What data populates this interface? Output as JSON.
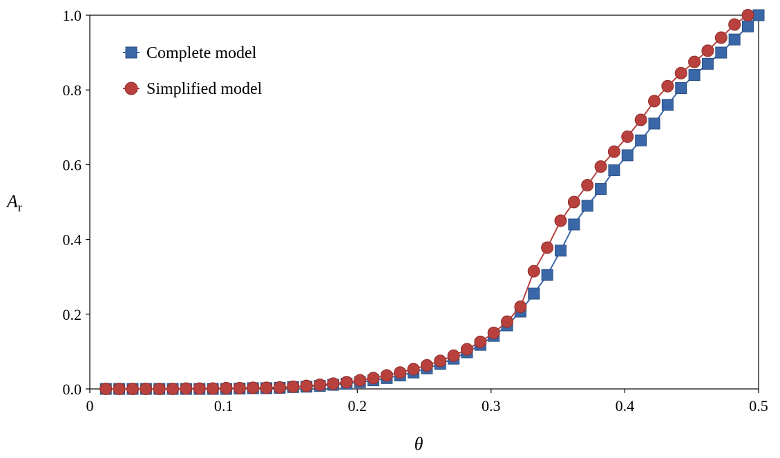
{
  "chart_data": {
    "type": "line",
    "xlabel": "θ",
    "ylabel_main": "A",
    "ylabel_sub": "r",
    "xlim": [
      0,
      0.5
    ],
    "ylim": [
      0,
      1.0
    ],
    "x_tick_labels": [
      "0",
      "0.1",
      "0.2",
      "0.3",
      "0.4",
      "0.5"
    ],
    "y_tick_labels": [
      "0.0",
      "0.2",
      "0.4",
      "0.6",
      "0.8",
      "1.0"
    ],
    "grid": false,
    "legend_position": "top-left",
    "series": [
      {
        "name": "Complete model",
        "marker": "square",
        "color": "#3a67a8",
        "x": [
          0.012,
          0.022,
          0.032,
          0.042,
          0.052,
          0.062,
          0.072,
          0.082,
          0.092,
          0.102,
          0.112,
          0.122,
          0.132,
          0.142,
          0.152,
          0.162,
          0.172,
          0.182,
          0.192,
          0.202,
          0.212,
          0.222,
          0.232,
          0.242,
          0.252,
          0.262,
          0.272,
          0.282,
          0.292,
          0.302,
          0.312,
          0.322,
          0.332,
          0.342,
          0.352,
          0.362,
          0.372,
          0.382,
          0.392,
          0.402,
          0.412,
          0.422,
          0.432,
          0.442,
          0.452,
          0.462,
          0.472,
          0.482,
          0.492,
          0.5
        ],
        "y": [
          0.0,
          0.0,
          0.0,
          0.0,
          0.0,
          0.0,
          0.0,
          0.0,
          0.0,
          0.0,
          0.001,
          0.002,
          0.002,
          0.003,
          0.005,
          0.006,
          0.008,
          0.011,
          0.014,
          0.018,
          0.023,
          0.029,
          0.036,
          0.044,
          0.055,
          0.067,
          0.081,
          0.098,
          0.118,
          0.142,
          0.17,
          0.207,
          0.255,
          0.305,
          0.37,
          0.44,
          0.49,
          0.535,
          0.585,
          0.625,
          0.665,
          0.71,
          0.76,
          0.805,
          0.84,
          0.87,
          0.9,
          0.935,
          0.97,
          1.0
        ]
      },
      {
        "name": "Simplified model",
        "marker": "circle",
        "color": "#b8413e",
        "x": [
          0.012,
          0.022,
          0.032,
          0.042,
          0.052,
          0.062,
          0.072,
          0.082,
          0.092,
          0.102,
          0.112,
          0.122,
          0.132,
          0.142,
          0.152,
          0.162,
          0.172,
          0.182,
          0.192,
          0.202,
          0.212,
          0.222,
          0.232,
          0.242,
          0.252,
          0.262,
          0.272,
          0.282,
          0.292,
          0.302,
          0.312,
          0.322,
          0.332,
          0.342,
          0.352,
          0.362,
          0.372,
          0.382,
          0.392,
          0.402,
          0.412,
          0.422,
          0.432,
          0.442,
          0.452,
          0.462,
          0.472,
          0.482,
          0.492
        ],
        "y": [
          0.0,
          0.0,
          0.0,
          0.0,
          0.0,
          0.0,
          0.001,
          0.001,
          0.001,
          0.002,
          0.002,
          0.003,
          0.003,
          0.004,
          0.006,
          0.008,
          0.011,
          0.014,
          0.018,
          0.023,
          0.029,
          0.036,
          0.044,
          0.053,
          0.063,
          0.075,
          0.089,
          0.106,
          0.126,
          0.15,
          0.18,
          0.22,
          0.315,
          0.378,
          0.45,
          0.5,
          0.545,
          0.595,
          0.635,
          0.675,
          0.72,
          0.77,
          0.81,
          0.845,
          0.875,
          0.905,
          0.94,
          0.975,
          1.0
        ]
      }
    ]
  }
}
